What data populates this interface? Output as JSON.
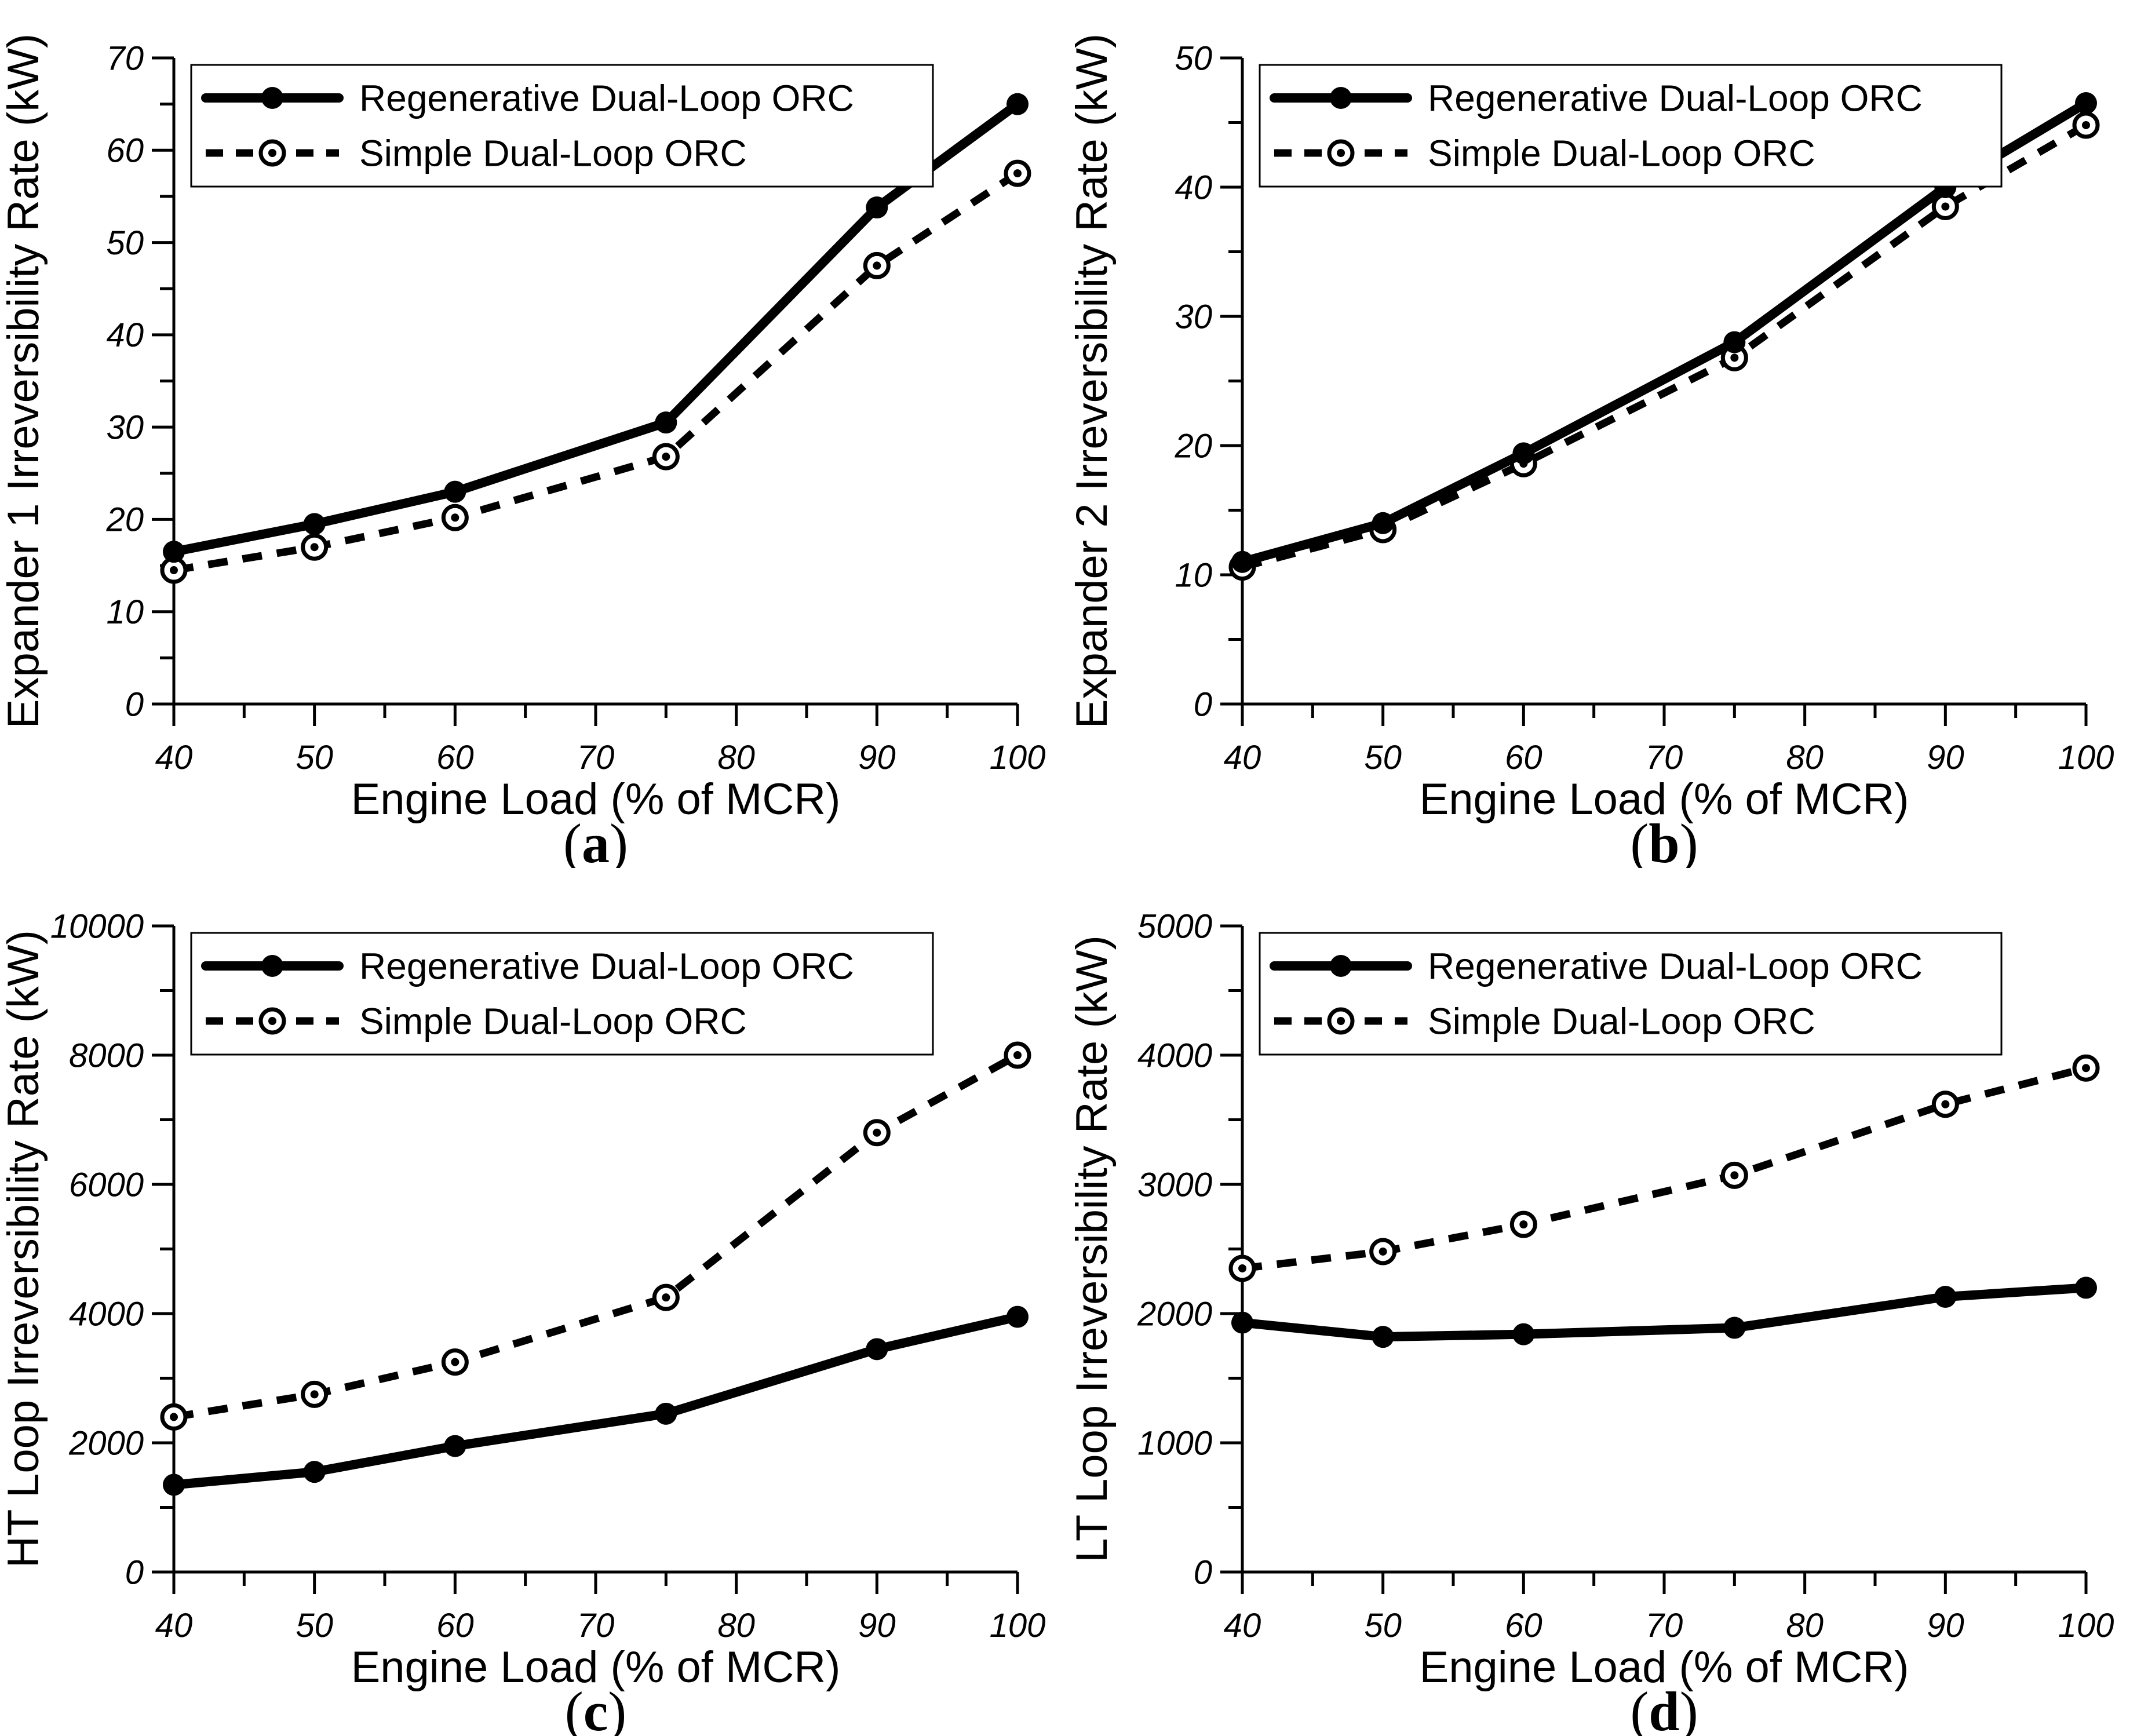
{
  "figure": {
    "background": "#ffffff",
    "ink_color": "#000000",
    "panels_order": [
      "a",
      "b",
      "c",
      "d"
    ]
  },
  "chart_data": [
    {
      "id": "a",
      "type": "line",
      "panel_label": "a",
      "xlabel": "Engine Load (% of MCR)",
      "ylabel": "Expander 1 Irreversibility Rate (kW)",
      "xlim": [
        40,
        100
      ],
      "ylim": [
        0,
        70
      ],
      "xticks": [
        40,
        50,
        60,
        70,
        80,
        90,
        100
      ],
      "yticks": [
        0,
        10,
        20,
        30,
        40,
        50,
        60,
        70
      ],
      "xminor_step": 5,
      "yminor_step": 5,
      "grid": false,
      "legend_position": "top-left",
      "x": [
        40,
        50,
        60,
        75,
        90,
        100
      ],
      "series": [
        {
          "name": "Regenerative Dual-Loop ORC",
          "style": "solid",
          "marker": "filled-circle",
          "values": [
            16.5,
            19.5,
            23.0,
            30.5,
            53.8,
            65.0
          ]
        },
        {
          "name": "Simple Dual-Loop ORC",
          "style": "dashed",
          "marker": "open-circle",
          "values": [
            14.5,
            17.0,
            20.2,
            26.8,
            47.5,
            57.5
          ]
        }
      ]
    },
    {
      "id": "b",
      "type": "line",
      "panel_label": "b",
      "xlabel": "Engine Load (% of MCR)",
      "ylabel": "Expander 2 Irreversibility Rate (kW)",
      "xlim": [
        40,
        100
      ],
      "ylim": [
        0,
        50
      ],
      "xticks": [
        40,
        50,
        60,
        70,
        80,
        90,
        100
      ],
      "yticks": [
        0,
        10,
        20,
        30,
        40,
        50
      ],
      "xminor_step": 5,
      "yminor_step": 5,
      "grid": false,
      "legend_position": "top-left",
      "x": [
        40,
        50,
        60,
        75,
        90,
        100
      ],
      "series": [
        {
          "name": "Regenerative Dual-Loop ORC",
          "style": "solid",
          "marker": "filled-circle",
          "values": [
            11.0,
            14.0,
            19.4,
            28.0,
            40.0,
            46.5
          ]
        },
        {
          "name": "Simple Dual-Loop ORC",
          "style": "dashed",
          "marker": "open-circle",
          "values": [
            10.6,
            13.5,
            18.6,
            26.8,
            38.5,
            44.8
          ]
        }
      ]
    },
    {
      "id": "c",
      "type": "line",
      "panel_label": "c",
      "xlabel": "Engine Load (% of MCR)",
      "ylabel": "HT Loop Irreversibility Rate (kW)",
      "xlim": [
        40,
        100
      ],
      "ylim": [
        0,
        10000
      ],
      "xticks": [
        40,
        50,
        60,
        70,
        80,
        90,
        100
      ],
      "yticks": [
        0,
        2000,
        4000,
        6000,
        8000,
        10000
      ],
      "xminor_step": 5,
      "yminor_step": 1000,
      "grid": false,
      "legend_position": "top-left",
      "x": [
        40,
        50,
        60,
        75,
        90,
        100
      ],
      "series": [
        {
          "name": "Regenerative Dual-Loop ORC",
          "style": "solid",
          "marker": "filled-circle",
          "values": [
            1350,
            1550,
            1950,
            2450,
            3450,
            3950
          ]
        },
        {
          "name": "Simple Dual-Loop ORC",
          "style": "dashed",
          "marker": "open-circle",
          "values": [
            2400,
            2750,
            3250,
            4250,
            6800,
            8000
          ]
        }
      ]
    },
    {
      "id": "d",
      "type": "line",
      "panel_label": "d",
      "xlabel": "Engine Load (% of MCR)",
      "ylabel": "LT Loop Irreversibility Rate (kW)",
      "xlim": [
        40,
        100
      ],
      "ylim": [
        0,
        5000
      ],
      "xticks": [
        40,
        50,
        60,
        70,
        80,
        90,
        100
      ],
      "yticks": [
        0,
        1000,
        2000,
        3000,
        4000,
        5000
      ],
      "xminor_step": 5,
      "yminor_step": 500,
      "grid": false,
      "legend_position": "top-left",
      "x": [
        40,
        50,
        60,
        75,
        90,
        100
      ],
      "series": [
        {
          "name": "Regenerative Dual-Loop ORC",
          "style": "solid",
          "marker": "filled-circle",
          "values": [
            1930,
            1820,
            1840,
            1890,
            2130,
            2200
          ]
        },
        {
          "name": "Simple Dual-Loop ORC",
          "style": "dashed",
          "marker": "open-circle",
          "values": [
            2350,
            2480,
            2690,
            3070,
            3620,
            3900
          ]
        }
      ]
    }
  ]
}
